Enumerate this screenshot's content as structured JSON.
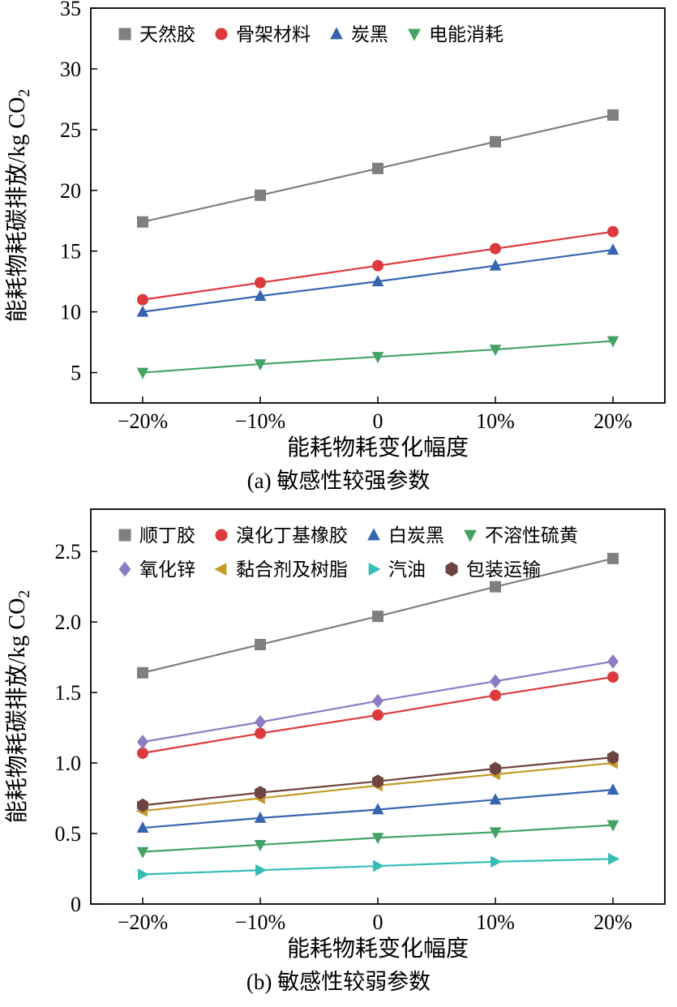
{
  "chart_data": [
    {
      "type": "line",
      "title": "(a) 敏感性较强参数",
      "xlabel": "能耗物耗变化幅度",
      "ylabel": "能耗物耗碳排放/kg CO₂",
      "ylabel_main": "能耗物耗碳排放/kg CO",
      "ylabel_sub": "2",
      "categories": [
        "−20%",
        "−10%",
        "0",
        "10%",
        "20%"
      ],
      "ylim": [
        2.5,
        35
      ],
      "yticks": [
        5,
        10,
        15,
        20,
        25,
        30,
        35
      ],
      "ytick_labels": [
        "5",
        "10",
        "15",
        "20",
        "25",
        "30",
        "35"
      ],
      "grid": false,
      "legend_position": "top-inside",
      "legend_rows": [
        [
          0,
          1,
          2,
          3
        ]
      ],
      "series": [
        {
          "name": "天然胶",
          "marker": "square",
          "color": "#7f7f7f",
          "values": [
            17.4,
            19.6,
            21.8,
            24.0,
            26.2
          ]
        },
        {
          "name": "骨架材料",
          "marker": "circle",
          "color": "#dd3a3e",
          "values": [
            11.0,
            12.4,
            13.8,
            15.2,
            16.6
          ]
        },
        {
          "name": "炭黑",
          "marker": "triangle-up",
          "color": "#3565af",
          "values": [
            10.0,
            11.3,
            12.5,
            13.8,
            15.1
          ]
        },
        {
          "name": "电能消耗",
          "marker": "triangle-down",
          "color": "#44a364",
          "values": [
            5.0,
            5.7,
            6.3,
            6.9,
            7.6
          ]
        }
      ]
    },
    {
      "type": "line",
      "title": "(b) 敏感性较弱参数",
      "xlabel": "能耗物耗变化幅度",
      "ylabel": "能耗物耗碳排放/kg CO₂",
      "ylabel_main": "能耗物耗碳排放/kg CO",
      "ylabel_sub": "2",
      "categories": [
        "−20%",
        "−10%",
        "0",
        "10%",
        "20%"
      ],
      "ylim": [
        0,
        2.8
      ],
      "yticks": [
        0,
        0.5,
        1.0,
        1.5,
        2.0,
        2.5
      ],
      "ytick_labels": [
        "0",
        "0.5",
        "1.0",
        "1.5",
        "2.0",
        "2.5"
      ],
      "grid": false,
      "legend_position": "top-inside",
      "legend_rows": [
        [
          0,
          1,
          2,
          3
        ],
        [
          4,
          5,
          6,
          7
        ]
      ],
      "series": [
        {
          "name": "顺丁胶",
          "marker": "square",
          "color": "#7f7f7f",
          "values": [
            1.64,
            1.84,
            2.04,
            2.25,
            2.45
          ]
        },
        {
          "name": "溴化丁基橡胶",
          "marker": "circle",
          "color": "#dd3a3e",
          "values": [
            1.07,
            1.21,
            1.34,
            1.48,
            1.61
          ]
        },
        {
          "name": "白炭黑",
          "marker": "triangle-up",
          "color": "#3565af",
          "values": [
            0.54,
            0.61,
            0.67,
            0.74,
            0.81
          ]
        },
        {
          "name": "不溶性硫黄",
          "marker": "triangle-down",
          "color": "#44a364",
          "values": [
            0.37,
            0.42,
            0.47,
            0.51,
            0.56
          ]
        },
        {
          "name": "氧化锌",
          "marker": "diamond",
          "color": "#8e7cc3",
          "values": [
            1.15,
            1.29,
            1.44,
            1.58,
            1.72
          ]
        },
        {
          "name": "黏合剂及树脂",
          "marker": "triangle-left",
          "color": "#c29b28",
          "values": [
            0.66,
            0.75,
            0.84,
            0.92,
            1.0
          ]
        },
        {
          "name": "汽油",
          "marker": "triangle-right",
          "color": "#35bdb5",
          "values": [
            0.21,
            0.24,
            0.27,
            0.3,
            0.32
          ]
        },
        {
          "name": "包装运输",
          "marker": "hexagon",
          "color": "#6d4440",
          "values": [
            0.7,
            0.79,
            0.87,
            0.96,
            1.04
          ]
        }
      ]
    }
  ]
}
